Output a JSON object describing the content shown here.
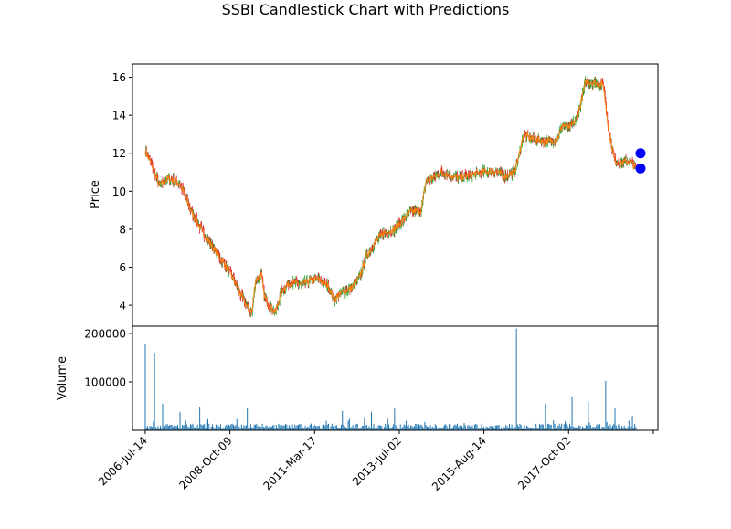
{
  "chart_data": {
    "type": "candlestick",
    "title": "SSBI Candlestick Chart with Predictions",
    "colors": {
      "up": "#2ca02c",
      "down": "#d62728",
      "close_line": "#ff7f0e",
      "prediction": "#0000ff",
      "volume": "#1f77b4",
      "axis": "#000000"
    },
    "price_panel": {
      "ylabel": "Price",
      "ylim": [
        2.9,
        16.7
      ],
      "yticks": [
        4,
        6,
        8,
        10,
        12,
        14,
        16
      ],
      "close_path": [
        [
          0,
          12.1
        ],
        [
          5,
          11.5
        ],
        [
          12,
          10.3
        ],
        [
          20,
          10.7
        ],
        [
          30,
          10.4
        ],
        [
          40,
          8.9
        ],
        [
          50,
          7.8
        ],
        [
          60,
          6.9
        ],
        [
          68,
          6.2
        ],
        [
          75,
          5.5
        ],
        [
          82,
          4.6
        ],
        [
          88,
          3.9
        ],
        [
          92,
          3.6
        ],
        [
          95,
          5.3
        ],
        [
          100,
          5.6
        ],
        [
          103,
          4.4
        ],
        [
          108,
          3.9
        ],
        [
          112,
          3.6
        ],
        [
          118,
          4.8
        ],
        [
          125,
          5.2
        ],
        [
          135,
          5.1
        ],
        [
          148,
          5.4
        ],
        [
          158,
          5.0
        ],
        [
          163,
          4.3
        ],
        [
          170,
          4.7
        ],
        [
          178,
          4.9
        ],
        [
          185,
          5.5
        ],
        [
          190,
          6.5
        ],
        [
          198,
          7.3
        ],
        [
          205,
          7.8
        ],
        [
          215,
          8.0
        ],
        [
          228,
          8.9
        ],
        [
          238,
          9.0
        ],
        [
          242,
          10.5
        ],
        [
          255,
          11.0
        ],
        [
          270,
          10.7
        ],
        [
          290,
          11.0
        ],
        [
          300,
          11.1
        ],
        [
          310,
          10.8
        ],
        [
          318,
          11.0
        ],
        [
          322,
          11.8
        ],
        [
          326,
          13.0
        ],
        [
          332,
          12.8
        ],
        [
          345,
          12.6
        ],
        [
          355,
          12.7
        ],
        [
          360,
          13.5
        ],
        [
          365,
          13.3
        ],
        [
          372,
          13.8
        ],
        [
          380,
          15.8
        ],
        [
          395,
          15.6
        ],
        [
          400,
          13.0
        ],
        [
          405,
          11.6
        ],
        [
          410,
          11.5
        ],
        [
          418,
          11.6
        ],
        [
          423,
          11.2
        ]
      ],
      "predictions": [
        [
          427,
          12.0
        ],
        [
          427,
          11.2
        ]
      ]
    },
    "volume_panel": {
      "ylabel": "Volume",
      "ylim": [
        0,
        215000
      ],
      "yticks": [
        100000,
        200000
      ],
      "ytick_labels": [
        "100000",
        "200000"
      ],
      "spikes": [
        [
          0,
          178000
        ],
        [
          8,
          160000
        ],
        [
          15,
          55000
        ],
        [
          30,
          38000
        ],
        [
          47,
          48000
        ],
        [
          88,
          45000
        ],
        [
          170,
          40000
        ],
        [
          195,
          38000
        ],
        [
          215,
          45000
        ],
        [
          320,
          210000
        ],
        [
          345,
          55000
        ],
        [
          368,
          70000
        ],
        [
          382,
          58000
        ],
        [
          397,
          102000
        ],
        [
          405,
          45000
        ],
        [
          420,
          30000
        ]
      ]
    },
    "x_axis": {
      "range": [
        -11,
        442
      ],
      "ticks": [
        0,
        73,
        146,
        219,
        292,
        365,
        438
      ],
      "tick_labels": [
        "2006-Jul-14",
        "2008-Oct-09",
        "2011-Mar-17",
        "2013-Jul-02",
        "2015-Aug-14",
        "2017-Oct-02",
        ""
      ]
    }
  }
}
